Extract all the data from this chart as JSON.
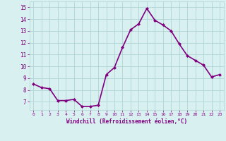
{
  "x": [
    0,
    1,
    2,
    3,
    4,
    5,
    6,
    7,
    8,
    9,
    10,
    11,
    12,
    13,
    14,
    15,
    16,
    17,
    18,
    19,
    20,
    21,
    22,
    23
  ],
  "y": [
    8.5,
    8.2,
    8.1,
    7.1,
    7.1,
    7.2,
    6.6,
    6.6,
    6.7,
    9.3,
    9.9,
    11.6,
    13.1,
    13.6,
    14.9,
    13.9,
    13.5,
    13.0,
    11.9,
    10.9,
    10.5,
    10.1,
    9.1,
    9.3
  ],
  "line_color": "#800080",
  "marker": "D",
  "marker_size": 2,
  "xlabel": "Windchill (Refroidissement éolien,°C)",
  "xlim": [
    -0.5,
    23.5
  ],
  "ylim": [
    6.3,
    15.5
  ],
  "yticks": [
    7,
    8,
    9,
    10,
    11,
    12,
    13,
    14,
    15
  ],
  "xticks": [
    0,
    1,
    2,
    3,
    4,
    5,
    6,
    7,
    8,
    9,
    10,
    11,
    12,
    13,
    14,
    15,
    16,
    17,
    18,
    19,
    20,
    21,
    22,
    23
  ],
  "bg_color": "#d8f0f0",
  "grid_color": "#afd4d4",
  "tick_color": "#800080",
  "label_color": "#800080",
  "line_width": 1.2
}
